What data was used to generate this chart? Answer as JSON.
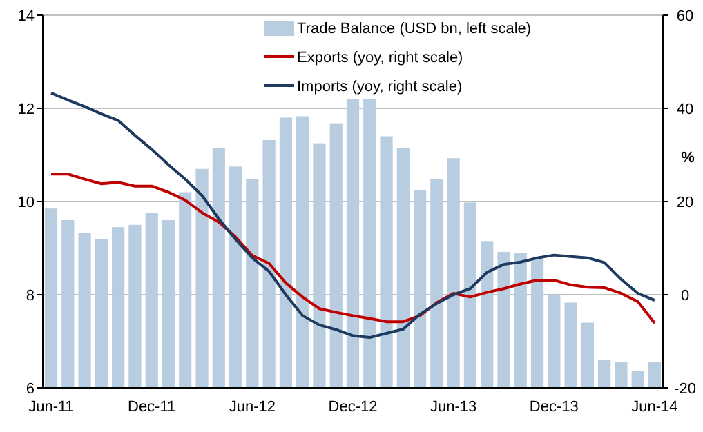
{
  "chart_data": {
    "type": "bar",
    "y2label": "%",
    "categories": [
      "Jun-11",
      null,
      null,
      null,
      null,
      null,
      "Dec-11",
      null,
      null,
      null,
      null,
      null,
      "Jun-12",
      null,
      null,
      null,
      null,
      null,
      "Dec-12",
      null,
      null,
      null,
      null,
      null,
      "Jun-13",
      null,
      null,
      null,
      null,
      null,
      "Dec-13",
      null,
      null,
      null,
      null,
      null,
      "Jun-14"
    ],
    "series": [
      {
        "name": "Trade Balance (USD bn, left scale)",
        "color": "#b9cde0",
        "values": [
          9.85,
          9.6,
          9.33,
          9.2,
          9.45,
          9.5,
          9.75,
          9.6,
          10.2,
          10.7,
          11.15,
          10.75,
          10.48,
          11.32,
          11.8,
          11.83,
          11.25,
          11.68,
          12.2,
          12.2,
          11.4,
          11.15,
          10.25,
          10.48,
          10.93,
          9.98,
          9.15,
          8.92,
          8.9,
          8.78,
          8.0,
          7.83,
          7.4,
          6.6,
          6.55,
          6.37,
          6.55
        ]
      },
      {
        "name": "Exports (yoy, right scale)",
        "type": "line",
        "axis": "y2",
        "color": "#c00000",
        "values": [
          25.9,
          25.9,
          24.8,
          23.8,
          24.1,
          23.3,
          23.3,
          22,
          20.3,
          17.6,
          15.6,
          12.4,
          8.4,
          6.7,
          2.5,
          -0.5,
          -3,
          -3.8,
          -4.5,
          -5.1,
          -5.8,
          -5.8,
          -4.5,
          -1.7,
          0.3,
          -0.5,
          0.5,
          1.3,
          2.3,
          3.1,
          3.1,
          2.1,
          1.6,
          1.5,
          0.3,
          -1.5,
          -6.1
        ]
      },
      {
        "name": "Imports (yoy, right scale)",
        "type": "line",
        "axis": "y2",
        "color": "#1f3a5f",
        "values": [
          43.3,
          41.8,
          40.4,
          38.8,
          37.4,
          34.2,
          31.2,
          27.9,
          24.8,
          21.3,
          16.3,
          11.9,
          7.9,
          5,
          0,
          -4.5,
          -6.5,
          -7.5,
          -8.8,
          -9.2,
          -8.3,
          -7.4,
          -4.2,
          -1.9,
          0,
          1.3,
          4.8,
          6.5,
          7,
          7.9,
          8.5,
          8.2,
          7.9,
          6.9,
          3.3,
          0.3,
          -1.2
        ]
      }
    ],
    "ylim": [
      6,
      14
    ],
    "yticks": [
      6,
      8,
      10,
      12,
      14
    ],
    "y2lim": [
      -20,
      60
    ],
    "y2ticks": [
      -20,
      0,
      20,
      40,
      60
    ],
    "grid": "y",
    "legend": "top",
    "line_style": "solid"
  }
}
